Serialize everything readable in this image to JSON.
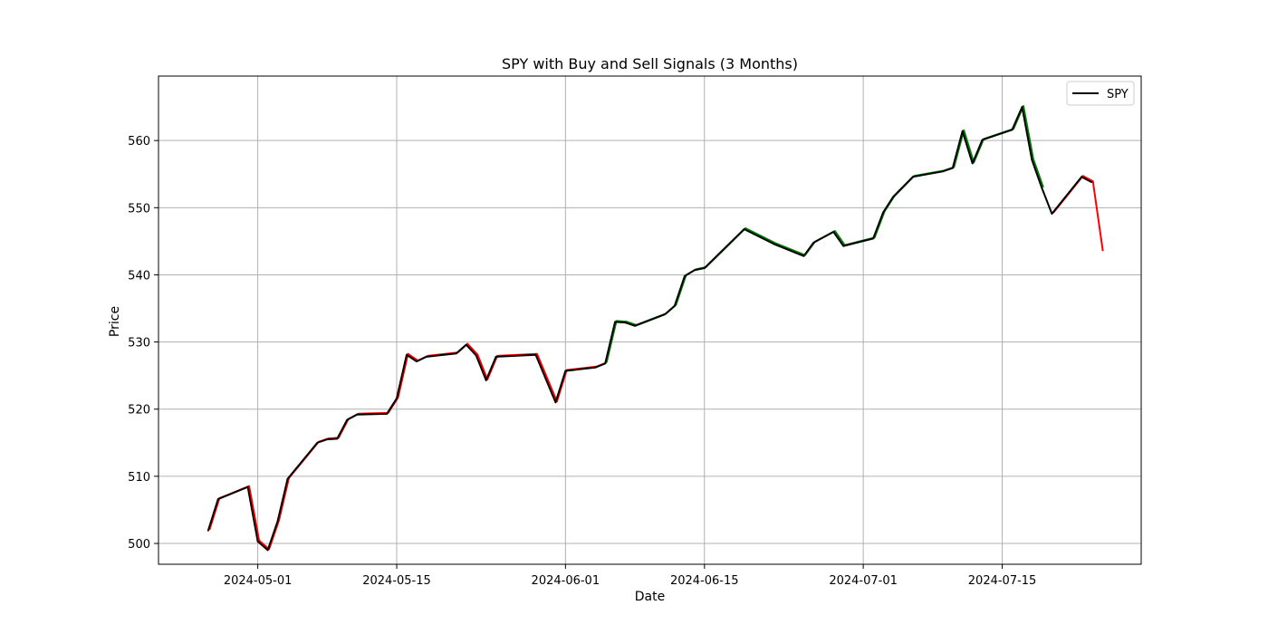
{
  "chart_data": {
    "type": "line",
    "title": "SPY with Buy and Sell Signals (3 Months)",
    "xlabel": "Date",
    "ylabel": "Price",
    "x_ticks": [
      "2024-05-01",
      "2024-05-15",
      "2024-06-01",
      "2024-06-15",
      "2024-07-01",
      "2024-07-15"
    ],
    "y_ticks": [
      500,
      510,
      520,
      530,
      540,
      550,
      560
    ],
    "xlim": [
      "2024-04-21",
      "2024-07-29"
    ],
    "ylim": [
      496.9,
      569.6
    ],
    "grid": true,
    "legend": {
      "position": "top-right",
      "entries": [
        "SPY"
      ]
    },
    "colors": {
      "spy": "#000000",
      "buy": "#008000",
      "sell": "#ff0000"
    },
    "series": [
      {
        "name": "SPY",
        "color": "#000000",
        "dates": [
          "2024-04-26",
          "2024-04-27",
          "2024-04-30",
          "2024-05-01",
          "2024-05-02",
          "2024-05-03",
          "2024-05-04",
          "2024-05-07",
          "2024-05-08",
          "2024-05-09",
          "2024-05-10",
          "2024-05-11",
          "2024-05-14",
          "2024-05-15",
          "2024-05-16",
          "2024-05-17",
          "2024-05-18",
          "2024-05-21",
          "2024-05-22",
          "2024-05-23",
          "2024-05-24",
          "2024-05-25",
          "2024-05-29",
          "2024-05-31",
          "2024-06-01",
          "2024-06-04",
          "2024-06-05",
          "2024-06-06",
          "2024-06-07",
          "2024-06-08",
          "2024-06-11",
          "2024-06-12",
          "2024-06-13",
          "2024-06-14",
          "2024-06-15",
          "2024-06-19",
          "2024-06-22",
          "2024-06-25",
          "2024-06-26",
          "2024-06-28",
          "2024-06-29",
          "2024-07-02",
          "2024-07-03",
          "2024-07-04",
          "2024-07-06",
          "2024-07-09",
          "2024-07-10",
          "2024-07-11",
          "2024-07-12",
          "2024-07-13",
          "2024-07-16",
          "2024-07-17",
          "2024-07-18",
          "2024-07-19",
          "2024-07-20",
          "2024-07-23",
          "2024-07-24"
        ],
        "values": [
          501.9,
          506.6,
          508.4,
          500.3,
          499.0,
          503.3,
          509.6,
          515.0,
          515.5,
          515.6,
          518.4,
          519.2,
          519.3,
          521.6,
          528.1,
          527.1,
          527.8,
          528.3,
          529.6,
          528.0,
          524.3,
          527.8,
          528.1,
          521.0,
          525.7,
          526.2,
          526.8,
          533.0,
          532.9,
          532.4,
          534.1,
          535.4,
          539.8,
          540.7,
          541.0,
          546.8,
          544.6,
          542.8,
          544.8,
          546.4,
          544.3,
          545.4,
          549.3,
          551.6,
          554.6,
          555.4,
          555.9,
          561.4,
          556.6,
          560.1,
          561.6,
          565.0,
          557.1,
          552.9,
          549.1,
          554.6,
          553.8
        ]
      }
    ],
    "signals": [
      {
        "signal": "sell",
        "dates": [
          "2024-04-26",
          "2024-04-27",
          "2024-04-30",
          "2024-05-01",
          "2024-05-02",
          "2024-05-03",
          "2024-05-04",
          "2024-05-07",
          "2024-05-08",
          "2024-05-09",
          "2024-05-10",
          "2024-05-11",
          "2024-05-14",
          "2024-05-15",
          "2024-05-16",
          "2024-05-17",
          "2024-05-18",
          "2024-05-21",
          "2024-05-22",
          "2024-05-23",
          "2024-05-24",
          "2024-05-25",
          "2024-05-29",
          "2024-05-31",
          "2024-06-01",
          "2024-06-04",
          "2024-06-05"
        ],
        "values": [
          501.9,
          506.6,
          508.4,
          500.3,
          499.0,
          503.3,
          509.6,
          515.0,
          515.5,
          515.6,
          518.4,
          519.2,
          519.3,
          521.6,
          528.1,
          527.1,
          527.8,
          528.3,
          529.6,
          528.0,
          524.3,
          527.8,
          528.1,
          521.0,
          525.7,
          526.2,
          526.8
        ]
      },
      {
        "signal": "buy",
        "dates": [
          "2024-06-05",
          "2024-06-06",
          "2024-06-07",
          "2024-06-08",
          "2024-06-11",
          "2024-06-12",
          "2024-06-13",
          "2024-06-14",
          "2024-06-15",
          "2024-06-19",
          "2024-06-22",
          "2024-06-25",
          "2024-06-26",
          "2024-06-28",
          "2024-06-29",
          "2024-07-02",
          "2024-07-03",
          "2024-07-04",
          "2024-07-06",
          "2024-07-09",
          "2024-07-10",
          "2024-07-11",
          "2024-07-12",
          "2024-07-13",
          "2024-07-16",
          "2024-07-17",
          "2024-07-18",
          "2024-07-19"
        ],
        "values": [
          526.8,
          533.0,
          532.9,
          532.4,
          534.1,
          535.4,
          539.8,
          540.7,
          541.0,
          546.8,
          544.6,
          542.8,
          544.8,
          546.4,
          544.3,
          545.4,
          549.3,
          551.6,
          554.6,
          555.4,
          555.9,
          561.4,
          556.6,
          560.1,
          561.6,
          565.0,
          557.1,
          552.9
        ]
      },
      {
        "signal": "sell",
        "dates": [
          "2024-07-20",
          "2024-07-23",
          "2024-07-24",
          "2024-07-25"
        ],
        "values": [
          549.1,
          554.6,
          553.8,
          543.4
        ]
      }
    ]
  }
}
